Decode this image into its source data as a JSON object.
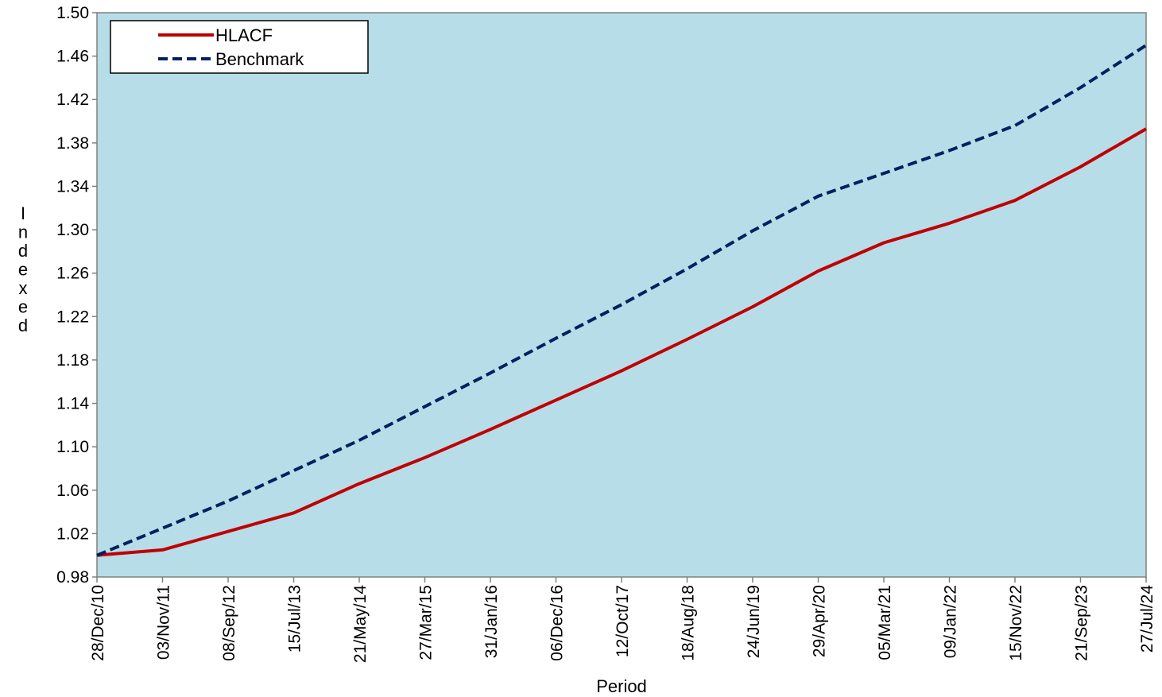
{
  "chart_data": {
    "type": "line",
    "title": "",
    "xlabel": "Period",
    "ylabel": "Indexed",
    "ylim": [
      0.98,
      1.5
    ],
    "yticks": [
      "0.98",
      "1.02",
      "1.06",
      "1.10",
      "1.14",
      "1.18",
      "1.22",
      "1.26",
      "1.30",
      "1.34",
      "1.38",
      "1.42",
      "1.46",
      "1.50"
    ],
    "categories": [
      "28/Dec/10",
      "03/Nov/11",
      "08/Sep/12",
      "15/Jul/13",
      "21/May/14",
      "27/Mar/15",
      "31/Jan/16",
      "06/Dec/16",
      "12/Oct/17",
      "18/Aug/18",
      "24/Jun/19",
      "29/Apr/20",
      "05/Mar/21",
      "09/Jan/22",
      "15/Nov/22",
      "21/Sep/23",
      "27/Jul/24"
    ],
    "grid": false,
    "background_color": "#B7DDE8",
    "legend_position": "top-left",
    "series": [
      {
        "name": "HLACF",
        "color": "#C00000",
        "style": "solid",
        "values": [
          1.0,
          1.005,
          1.022,
          1.039,
          1.066,
          1.09,
          1.116,
          1.143,
          1.17,
          1.199,
          1.229,
          1.262,
          1.288,
          1.306,
          1.327,
          1.358,
          1.393
        ]
      },
      {
        "name": "Benchmark",
        "color": "#002060",
        "style": "dashed",
        "values": [
          1.0,
          1.025,
          1.05,
          1.078,
          1.106,
          1.137,
          1.168,
          1.2,
          1.231,
          1.264,
          1.299,
          1.331,
          1.352,
          1.373,
          1.396,
          1.431,
          1.47
        ]
      }
    ]
  }
}
